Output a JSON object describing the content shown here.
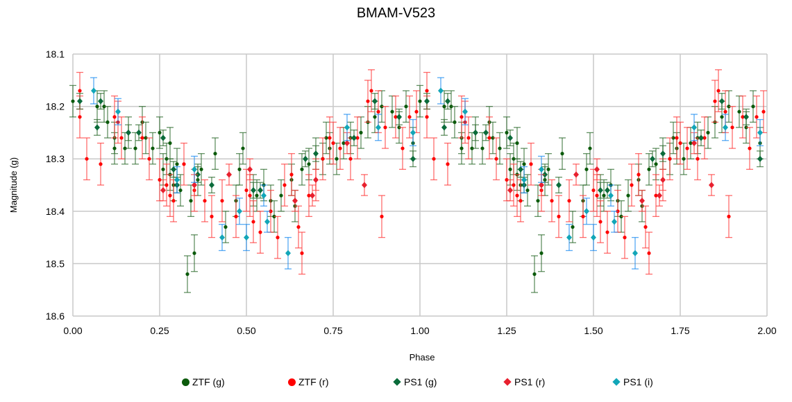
{
  "chart_data": {
    "type": "scatter",
    "title": "BMAM-V523",
    "xlabel": "Phase",
    "ylabel": "Magnitude (g)",
    "xlim": [
      0,
      2
    ],
    "ylim": [
      18.6,
      18.1
    ],
    "y_inverted": true,
    "grid": true,
    "legend_position": "bottom",
    "phase_repeated_twice": true,
    "xticks": [
      "0.00",
      "0.25",
      "0.50",
      "0.75",
      "1.00",
      "1.25",
      "1.50",
      "1.75",
      "2.00"
    ],
    "yticks": [
      "18.1",
      "18.2",
      "18.3",
      "18.4",
      "18.5",
      "18.6"
    ],
    "series": [
      {
        "name": "ZTF (g)",
        "marker": "circle",
        "color": "#0b5a0b",
        "errcolor": "#2e6b2e",
        "points": [
          [
            0.0,
            18.19,
            0.03
          ],
          [
            0.07,
            18.2,
            0.03
          ],
          [
            0.09,
            18.2,
            0.03
          ],
          [
            0.1,
            18.23,
            0.03
          ],
          [
            0.12,
            18.26,
            0.03
          ],
          [
            0.12,
            18.28,
            0.03
          ],
          [
            0.15,
            18.28,
            0.03
          ],
          [
            0.16,
            18.25,
            0.03
          ],
          [
            0.18,
            18.28,
            0.03
          ],
          [
            0.2,
            18.23,
            0.03
          ],
          [
            0.21,
            18.26,
            0.03
          ],
          [
            0.23,
            18.28,
            0.03
          ],
          [
            0.25,
            18.25,
            0.03
          ],
          [
            0.26,
            18.32,
            0.03
          ],
          [
            0.27,
            18.3,
            0.03
          ],
          [
            0.28,
            18.27,
            0.03
          ],
          [
            0.28,
            18.33,
            0.03
          ],
          [
            0.29,
            18.35,
            0.03
          ],
          [
            0.3,
            18.31,
            0.03
          ],
          [
            0.31,
            18.36,
            0.03
          ],
          [
            0.33,
            18.52,
            0.035
          ],
          [
            0.34,
            18.38,
            0.03
          ],
          [
            0.35,
            18.48,
            0.035
          ],
          [
            0.36,
            18.34,
            0.03
          ],
          [
            0.37,
            18.32,
            0.03
          ],
          [
            0.41,
            18.29,
            0.03
          ],
          [
            0.44,
            18.43,
            0.03
          ],
          [
            0.47,
            18.38,
            0.03
          ],
          [
            0.48,
            18.32,
            0.03
          ],
          [
            0.49,
            18.28,
            0.03
          ],
          [
            0.52,
            18.36,
            0.03
          ],
          [
            0.53,
            18.37,
            0.03
          ],
          [
            0.55,
            18.35,
            0.03
          ],
          [
            0.57,
            18.38,
            0.03
          ],
          [
            0.58,
            18.41,
            0.03
          ],
          [
            0.6,
            18.37,
            0.03
          ],
          [
            0.63,
            18.34,
            0.03
          ],
          [
            0.64,
            18.39,
            0.03
          ],
          [
            0.66,
            18.32,
            0.03
          ],
          [
            0.68,
            18.31,
            0.03
          ],
          [
            0.7,
            18.29,
            0.03
          ],
          [
            0.72,
            18.3,
            0.03
          ],
          [
            0.73,
            18.26,
            0.03
          ],
          [
            0.74,
            18.28,
            0.03
          ],
          [
            0.76,
            18.3,
            0.03
          ],
          [
            0.78,
            18.27,
            0.03
          ],
          [
            0.8,
            18.26,
            0.03
          ],
          [
            0.83,
            18.25,
            0.03
          ],
          [
            0.85,
            18.23,
            0.03
          ],
          [
            0.87,
            18.22,
            0.03
          ],
          [
            0.89,
            18.2,
            0.03
          ],
          [
            0.92,
            18.21,
            0.03
          ],
          [
            0.94,
            18.24,
            0.03
          ],
          [
            0.96,
            18.2,
            0.03
          ],
          [
            0.98,
            18.27,
            0.03
          ]
        ]
      },
      {
        "name": "ZTF (r)",
        "marker": "circle",
        "color": "#ff0000",
        "errcolor": "#ff3b3b",
        "points": [
          [
            0.02,
            18.17,
            0.035
          ],
          [
            0.02,
            18.22,
            0.04
          ],
          [
            0.04,
            18.3,
            0.04
          ],
          [
            0.08,
            18.31,
            0.04
          ],
          [
            0.12,
            18.22,
            0.04
          ],
          [
            0.13,
            18.23,
            0.04
          ],
          [
            0.14,
            18.26,
            0.04
          ],
          [
            0.2,
            18.26,
            0.04
          ],
          [
            0.22,
            18.3,
            0.04
          ],
          [
            0.25,
            18.34,
            0.04
          ],
          [
            0.27,
            18.35,
            0.04
          ],
          [
            0.28,
            18.37,
            0.04
          ],
          [
            0.29,
            18.38,
            0.04
          ],
          [
            0.32,
            18.31,
            0.04
          ],
          [
            0.35,
            18.36,
            0.04
          ],
          [
            0.38,
            18.38,
            0.04
          ],
          [
            0.4,
            18.41,
            0.04
          ],
          [
            0.43,
            18.38,
            0.04
          ],
          [
            0.47,
            18.41,
            0.04
          ],
          [
            0.5,
            18.36,
            0.04
          ],
          [
            0.51,
            18.37,
            0.04
          ],
          [
            0.52,
            18.42,
            0.04
          ],
          [
            0.54,
            18.44,
            0.04
          ],
          [
            0.57,
            18.4,
            0.04
          ],
          [
            0.59,
            18.45,
            0.04
          ],
          [
            0.61,
            18.35,
            0.04
          ],
          [
            0.63,
            18.33,
            0.04
          ],
          [
            0.65,
            18.43,
            0.04
          ],
          [
            0.66,
            18.48,
            0.04
          ],
          [
            0.68,
            18.37,
            0.04
          ],
          [
            0.7,
            18.34,
            0.04
          ],
          [
            0.72,
            18.3,
            0.04
          ],
          [
            0.74,
            18.26,
            0.04
          ],
          [
            0.75,
            18.27,
            0.04
          ],
          [
            0.77,
            18.28,
            0.04
          ],
          [
            0.8,
            18.3,
            0.04
          ],
          [
            0.82,
            18.26,
            0.04
          ],
          [
            0.85,
            18.19,
            0.04
          ],
          [
            0.86,
            18.17,
            0.04
          ],
          [
            0.88,
            18.21,
            0.04
          ],
          [
            0.89,
            18.41,
            0.04
          ],
          [
            0.9,
            18.24,
            0.04
          ],
          [
            0.93,
            18.22,
            0.04
          ],
          [
            0.95,
            18.28,
            0.04
          ],
          [
            0.97,
            18.22,
            0.04
          ],
          [
            0.99,
            18.21,
            0.04
          ]
        ]
      },
      {
        "name": "PS1 (g)",
        "marker": "diamond",
        "color": "#0a6b3a",
        "errcolor": "#2e6b2e",
        "points": [
          [
            0.02,
            18.19,
            0.015
          ],
          [
            0.07,
            18.24,
            0.015
          ],
          [
            0.08,
            18.19,
            0.015
          ],
          [
            0.16,
            18.25,
            0.015
          ],
          [
            0.19,
            18.25,
            0.015
          ],
          [
            0.26,
            18.26,
            0.015
          ],
          [
            0.29,
            18.32,
            0.015
          ],
          [
            0.3,
            18.35,
            0.015
          ],
          [
            0.36,
            18.33,
            0.015
          ],
          [
            0.4,
            18.35,
            0.015
          ],
          [
            0.52,
            18.36,
            0.015
          ],
          [
            0.54,
            18.36,
            0.015
          ],
          [
            0.67,
            18.3,
            0.015
          ],
          [
            0.7,
            18.29,
            0.015
          ],
          [
            0.81,
            18.26,
            0.015
          ],
          [
            0.87,
            18.19,
            0.015
          ],
          [
            0.94,
            18.22,
            0.015
          ],
          [
            0.98,
            18.3,
            0.015
          ]
        ]
      },
      {
        "name": "PS1 (r)",
        "marker": "diamond",
        "color": "#e8202e",
        "errcolor": "#ff3b3b",
        "points": [
          [
            0.26,
            18.36,
            0.02
          ],
          [
            0.35,
            18.35,
            0.02
          ],
          [
            0.45,
            18.33,
            0.02
          ],
          [
            0.51,
            18.32,
            0.02
          ],
          [
            0.64,
            18.38,
            0.02
          ],
          [
            0.69,
            18.37,
            0.02
          ],
          [
            0.7,
            18.34,
            0.02
          ],
          [
            0.79,
            18.27,
            0.02
          ],
          [
            0.84,
            18.35,
            0.02
          ]
        ]
      },
      {
        "name": "PS1 (i)",
        "marker": "diamond",
        "color": "#12a6b8",
        "errcolor": "#1e8cf0",
        "points": [
          [
            0.06,
            18.17,
            0.025
          ],
          [
            0.13,
            18.21,
            0.025
          ],
          [
            0.3,
            18.34,
            0.025
          ],
          [
            0.35,
            18.32,
            0.025
          ],
          [
            0.43,
            18.45,
            0.025
          ],
          [
            0.48,
            18.4,
            0.025
          ],
          [
            0.5,
            18.45,
            0.025
          ],
          [
            0.55,
            18.37,
            0.02
          ],
          [
            0.56,
            18.42,
            0.02
          ],
          [
            0.62,
            18.48,
            0.03
          ],
          [
            0.79,
            18.24,
            0.025
          ],
          [
            0.88,
            18.24,
            0.025
          ],
          [
            0.98,
            18.25,
            0.025
          ]
        ]
      }
    ]
  }
}
